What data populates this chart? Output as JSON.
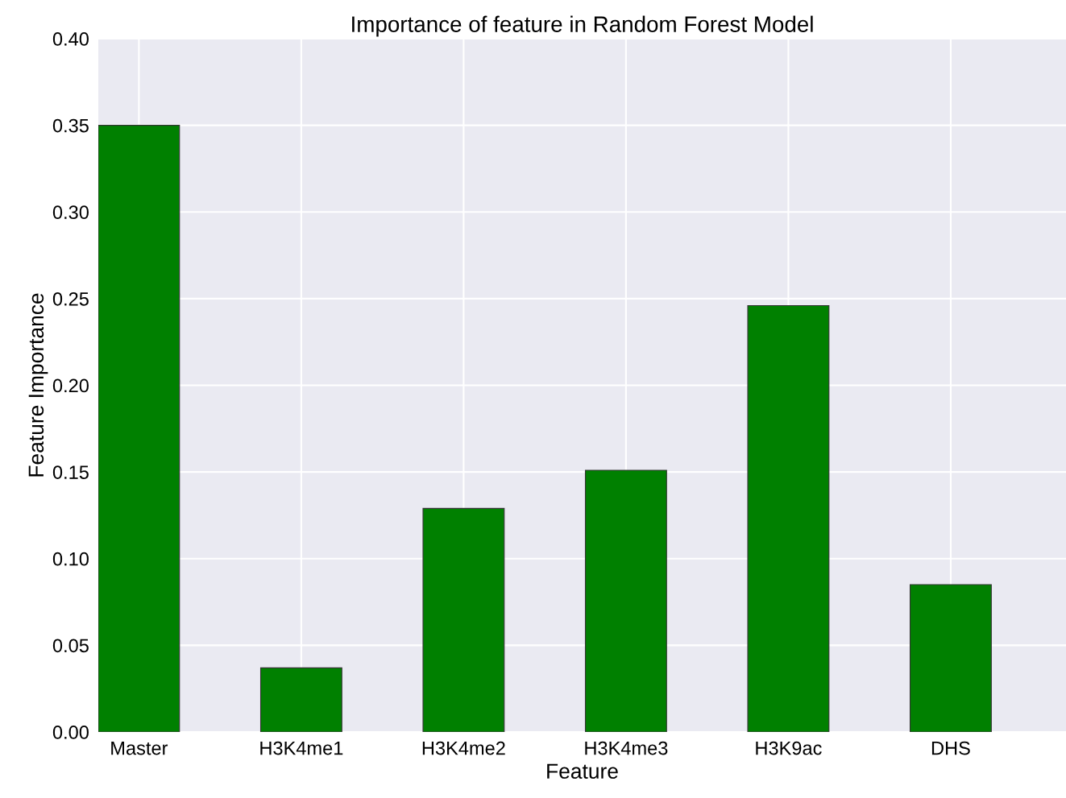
{
  "chart_data": {
    "type": "bar",
    "title": "Importance of feature in Random Forest Model",
    "xlabel": "Feature",
    "ylabel": "Feature Importance",
    "categories": [
      "Master",
      "H3K4me1",
      "H3K4me2",
      "H3K4me3",
      "H3K9ac",
      "DHS"
    ],
    "values": [
      0.35,
      0.037,
      0.129,
      0.151,
      0.246,
      0.085
    ],
    "color": "#008000",
    "ylim": [
      0,
      0.4
    ],
    "yticks": [
      {
        "value": 0,
        "label": "0.00"
      },
      {
        "value": 0.05,
        "label": "0.05"
      },
      {
        "value": 0.1,
        "label": "0.10"
      },
      {
        "value": 0.15,
        "label": "0.15"
      },
      {
        "value": 0.2,
        "label": "0.20"
      },
      {
        "value": 0.25,
        "label": "0.25"
      },
      {
        "value": 0.3,
        "label": "0.30"
      },
      {
        "value": 0.35,
        "label": "0.35"
      },
      {
        "value": 0.4,
        "label": "0.40"
      }
    ],
    "grid": true
  }
}
